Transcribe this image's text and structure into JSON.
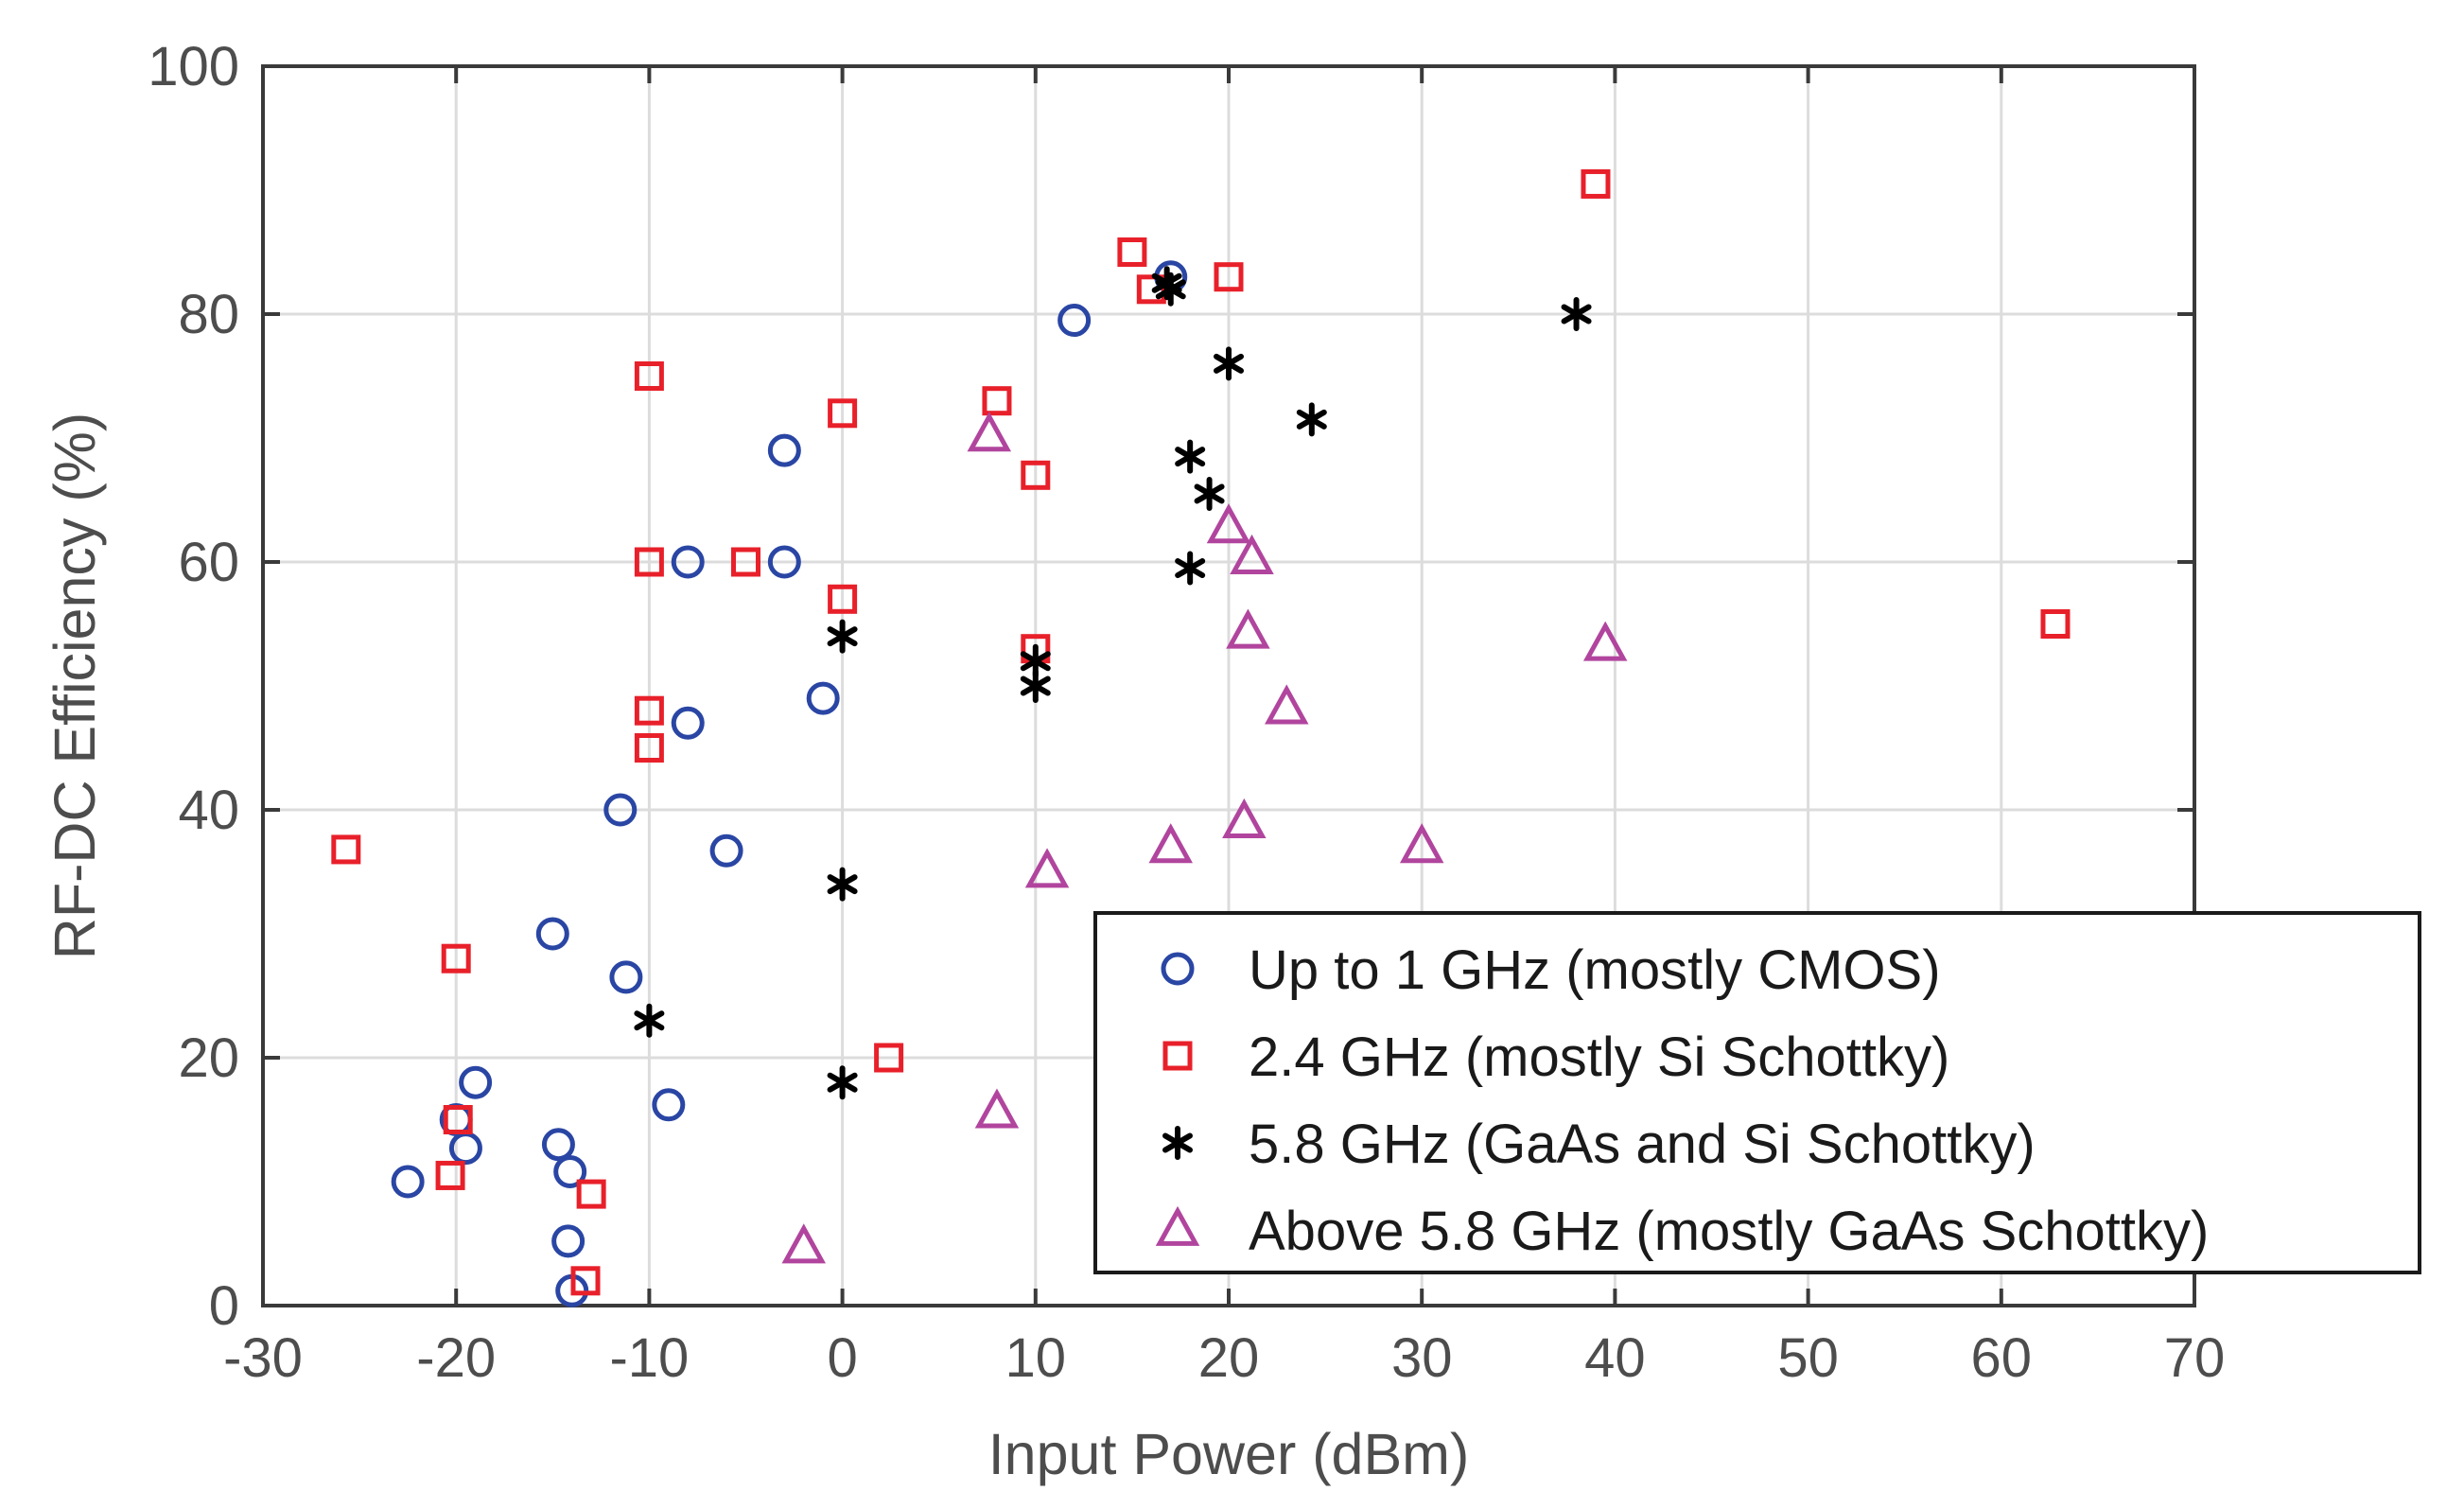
{
  "chart_data": {
    "type": "scatter",
    "title": "",
    "xlabel": "Input Power (dBm)",
    "ylabel": "RF-DC Efficiency (%)",
    "xlim": [
      -30,
      70
    ],
    "ylim": [
      0,
      100
    ],
    "xticks": [
      -30,
      -20,
      -10,
      0,
      10,
      20,
      30,
      40,
      50,
      60,
      70
    ],
    "yticks": [
      0,
      20,
      40,
      60,
      80,
      100
    ],
    "grid": true,
    "legend_position": "bottom-right",
    "series": [
      {
        "name": "Up to 1 GHz (mostly CMOS)",
        "marker": "circle",
        "color": "#2a46a4",
        "points": [
          [
            -22.5,
            10
          ],
          [
            -20,
            15
          ],
          [
            -19.5,
            12.7
          ],
          [
            -19,
            18
          ],
          [
            -15,
            30
          ],
          [
            -14.7,
            13
          ],
          [
            -14.1,
            10.8
          ],
          [
            -14.2,
            5.2
          ],
          [
            -14,
            1.2
          ],
          [
            -11.2,
            26.5
          ],
          [
            -11.5,
            40
          ],
          [
            -9,
            16.2
          ],
          [
            -8,
            47
          ],
          [
            -8,
            60
          ],
          [
            -6,
            36.7
          ],
          [
            -3,
            69
          ],
          [
            -3,
            60
          ],
          [
            -1,
            49
          ],
          [
            12,
            79.5
          ],
          [
            17,
            83
          ]
        ]
      },
      {
        "name": "2.4 GHz (mostly Si Schottky)",
        "marker": "square",
        "color": "#e8202a",
        "points": [
          [
            -25.7,
            36.8
          ],
          [
            -20.3,
            10.5
          ],
          [
            -20,
            28
          ],
          [
            -19.9,
            15
          ],
          [
            -13,
            9
          ],
          [
            -13.3,
            2
          ],
          [
            -10,
            75
          ],
          [
            -10,
            60
          ],
          [
            -10,
            48
          ],
          [
            -10,
            45
          ],
          [
            -5,
            60
          ],
          [
            0,
            72
          ],
          [
            0,
            57
          ],
          [
            2.4,
            20
          ],
          [
            8,
            73
          ],
          [
            10,
            67
          ],
          [
            10,
            53
          ],
          [
            15,
            85
          ],
          [
            16,
            82
          ],
          [
            20,
            83
          ],
          [
            39,
            90.5
          ],
          [
            62.8,
            55
          ]
        ]
      },
      {
        "name": "5.8 GHz (GaAs and Si Schottky)",
        "marker": "asterisk",
        "color": "#000000",
        "points": [
          [
            -10,
            23
          ],
          [
            0,
            54
          ],
          [
            0,
            34
          ],
          [
            0,
            18
          ],
          [
            10,
            52
          ],
          [
            10,
            50
          ],
          [
            16.8,
            82.5
          ],
          [
            17,
            82
          ],
          [
            20,
            76
          ],
          [
            24.3,
            71.5
          ],
          [
            18,
            68.5
          ],
          [
            19,
            65.5
          ],
          [
            18,
            59.5
          ],
          [
            38,
            80
          ]
        ]
      },
      {
        "name": "Above 5.8 GHz (mostly GaAs Schottky)",
        "marker": "triangle",
        "color": "#b1459e",
        "points": [
          [
            -2,
            4.7
          ],
          [
            7.6,
            70.2
          ],
          [
            8,
            15.6
          ],
          [
            10.6,
            35
          ],
          [
            17,
            37
          ],
          [
            20,
            62.8
          ],
          [
            21.2,
            60.3
          ],
          [
            21,
            54.3
          ],
          [
            23,
            48.2
          ],
          [
            20.8,
            39
          ],
          [
            30,
            37
          ],
          [
            39.5,
            53.3
          ]
        ]
      }
    ]
  }
}
